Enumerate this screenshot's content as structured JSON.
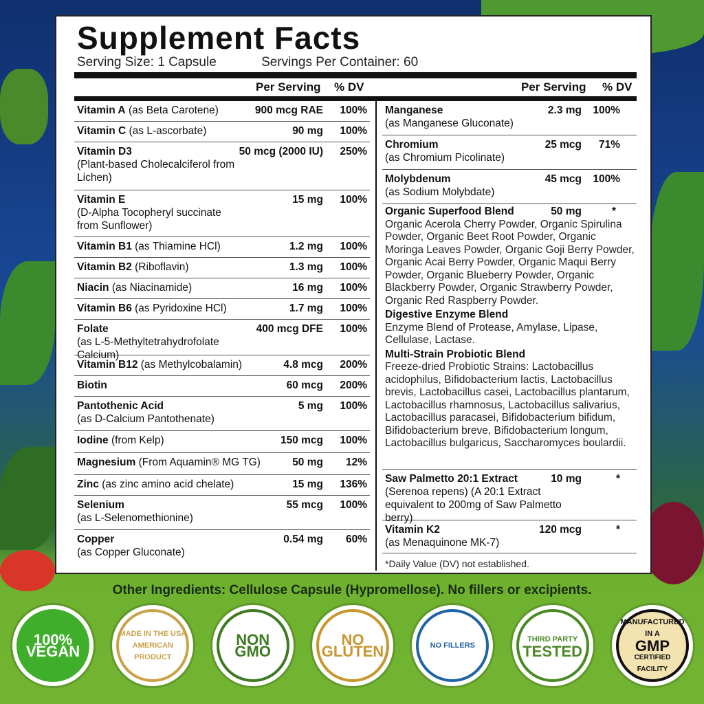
{
  "title": "Supplement Facts",
  "serving_size": "Serving Size: 1 Capsule",
  "servings_per_container": "Servings Per Container: 60",
  "col_headers": {
    "per_serving": "Per Serving",
    "dv": "% DV"
  },
  "left_rows": [
    {
      "name": "Vitamin A",
      "qualifier": "(as Beta Carotene)",
      "sub": "",
      "amount": "900 mcg RAE",
      "dv": "100%"
    },
    {
      "name": "Vitamin C",
      "qualifier": "(as L-ascorbate)",
      "sub": "",
      "amount": "90 mg",
      "dv": "100%"
    },
    {
      "name": "Vitamin D3",
      "qualifier": "",
      "sub": "(Plant-based Cholecalciferol from Lichen)",
      "amount": "50 mcg (2000 IU)",
      "dv": "250%"
    },
    {
      "name": "Vitamin E",
      "qualifier": "",
      "sub": "(D-Alpha Tocopheryl succinate from Sunflower)",
      "amount": "15 mg",
      "dv": "100%"
    },
    {
      "name": "Vitamin B1",
      "qualifier": "(as Thiamine HCl)",
      "sub": "",
      "amount": "1.2 mg",
      "dv": "100%"
    },
    {
      "name": "Vitamin B2",
      "qualifier": "(Riboflavin)",
      "sub": "",
      "amount": "1.3 mg",
      "dv": "100%"
    },
    {
      "name": "Niacin",
      "qualifier": "(as Niacinamide)",
      "sub": "",
      "amount": "16 mg",
      "dv": "100%"
    },
    {
      "name": "Vitamin B6",
      "qualifier": "(as Pyridoxine HCl)",
      "sub": "",
      "amount": "1.7 mg",
      "dv": "100%"
    },
    {
      "name": "Folate",
      "qualifier": "",
      "sub": "(as L-5-Methyltetrahydrofolate Calcium)",
      "amount": "400 mcg DFE",
      "dv": "100%"
    },
    {
      "name": "Vitamin B12",
      "qualifier": "(as Methylcobalamin)",
      "sub": "",
      "amount": "4.8 mcg",
      "dv": "200%"
    },
    {
      "name": "Biotin",
      "qualifier": "",
      "sub": "",
      "amount": "60 mcg",
      "dv": "200%"
    },
    {
      "name": "Pantothenic Acid",
      "qualifier": "",
      "sub": "(as D-Calcium Pantothenate)",
      "amount": "5 mg",
      "dv": "100%"
    },
    {
      "name": "Iodine",
      "qualifier": "(from Kelp)",
      "sub": "",
      "amount": "150 mcg",
      "dv": "100%"
    },
    {
      "name": "Magnesium",
      "qualifier": "(From Aquamin® MG TG)",
      "sub": "",
      "amount": "50 mg",
      "dv": "12%"
    },
    {
      "name": "Zinc",
      "qualifier": "(as zinc amino acid chelate)",
      "sub": "",
      "amount": "15 mg",
      "dv": "136%"
    },
    {
      "name": "Selenium",
      "qualifier": "",
      "sub": "(as L-Selenomethionine)",
      "amount": "55 mcg",
      "dv": "100%"
    },
    {
      "name": "Copper",
      "qualifier": "",
      "sub": "(as Copper Gluconate)",
      "amount": "0.54 mg",
      "dv": "60%"
    }
  ],
  "right_rows": [
    {
      "name": "Manganese",
      "sub": "(as Manganese Gluconate)",
      "amount": "2.3 mg",
      "dv": "100%"
    },
    {
      "name": "Chromium",
      "sub": "(as Chromium Picolinate)",
      "amount": "25 mcg",
      "dv": "71%"
    },
    {
      "name": "Molybdenum",
      "sub": "(as Sodium Molybdate)",
      "amount": "45 mcg",
      "dv": "100%"
    }
  ],
  "blends": [
    {
      "name": "Organic Superfood Blend",
      "amount": "50 mg",
      "dv": "*",
      "text": "Organic Acerola Cherry Powder, Organic Spirulina Powder, Organic Beet Root Powder, Organic Moringa Leaves Powder, Organic Goji Berry Powder, Organic Acai Berry Powder, Organic Maqui Berry Powder, Organic Blueberry Powder, Organic Blackberry Powder, Organic Strawberry Powder, Organic Red Raspberry Powder."
    },
    {
      "name": "Digestive Enzyme Blend",
      "amount": "",
      "dv": "",
      "text": "Enzyme Blend of Protease, Amylase, Lipase, Cellulase, Lactase."
    },
    {
      "name": "Multi-Strain Probiotic Blend",
      "amount": "",
      "dv": "",
      "text": "Freeze-dried Probiotic Strains: Lactobacillus acidophilus, Bifidobacterium lactis, Lactobacillus brevis, Lactobacillus casei, Lactobacillus plantarum, Lactobacillus rhamnosus, Lactobacillus salivarius, Lactobacillus paracasei, Bifidobacterium bifidum, Bifidobacterium breve, Bifidobacterium longum, Lactobacillus bulgaricus, Saccharomyces boulardii."
    }
  ],
  "right_rows_2": [
    {
      "name": "Saw Palmetto 20:1 Extract",
      "sub": "(Serenoa repens) (A 20:1 Extract equivalent to 200mg of Saw Palmetto berry)",
      "amount": "10 mg",
      "dv": "*"
    },
    {
      "name": "Vitamin K2",
      "sub": "(as Menaquinone MK-7)",
      "amount": "120 mcg",
      "dv": "*"
    }
  ],
  "footnote": "*Daily Value (DV) not established.",
  "other_ingredients": "Other Ingredients: Cellulose Capsule (Hypromellose). No fillers or excipients.",
  "badges": [
    {
      "l1": "100%",
      "l2": "VEGAN",
      "color": "#3fae2a"
    },
    {
      "l1": "MADE IN THE USA",
      "l2": "AMERICAN PRODUCT",
      "color": "#c9a24a"
    },
    {
      "l1": "NON",
      "l2": "GMO",
      "color": "#3d7a22"
    },
    {
      "l1": "NO",
      "l2": "GLUTEN",
      "color": "#c8962e"
    },
    {
      "l1": "NO FILLERS",
      "l2": "",
      "color": "#1f63a8"
    },
    {
      "l1": "THIRD PARTY",
      "l2": "TESTED",
      "color": "#4a8a25"
    },
    {
      "l1": "MANUFACTURED IN A",
      "l2": "GMP",
      "l3": "CERTIFIED FACILITY",
      "color": "#111111"
    }
  ]
}
